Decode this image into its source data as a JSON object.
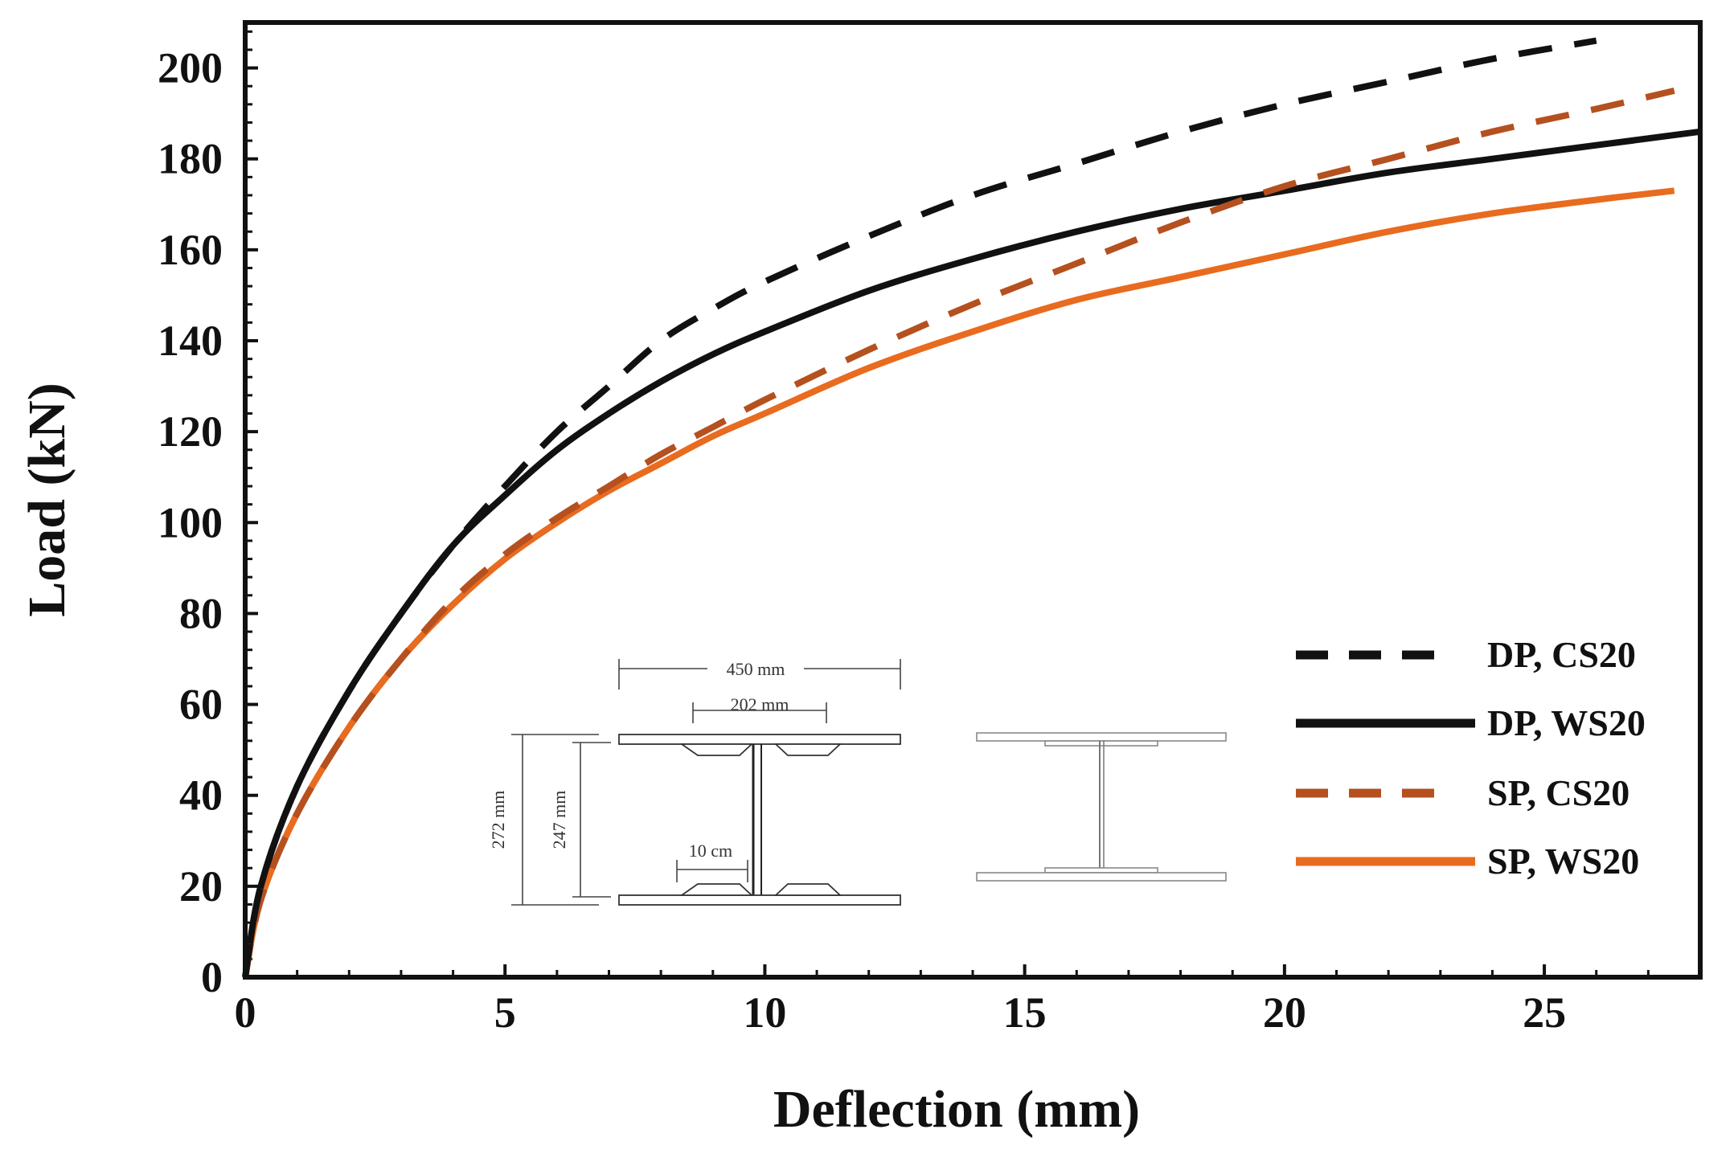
{
  "chart_data": {
    "type": "line",
    "title": "",
    "xlabel": "Deflection (mm)",
    "ylabel": "Load (kN)",
    "xlim": [
      0,
      28
    ],
    "ylim": [
      0,
      210
    ],
    "xticks": [
      0,
      5,
      10,
      15,
      20,
      25
    ],
    "yticks": [
      0,
      20,
      40,
      60,
      80,
      100,
      120,
      140,
      160,
      180,
      200
    ],
    "grid": false,
    "legend_position": "bottom-right",
    "series": [
      {
        "name": "DP, CS20",
        "color": "#111111",
        "dash": "dashed",
        "x": [
          0,
          0.3,
          1,
          2,
          3,
          4,
          5,
          6,
          7,
          8,
          9,
          10,
          12,
          14,
          16,
          18,
          20,
          22,
          24,
          26
        ],
        "y": [
          0,
          20,
          42,
          63,
          80,
          95,
          108,
          120,
          130,
          140,
          147,
          153,
          163,
          172,
          179,
          186,
          192,
          197,
          202,
          206
        ]
      },
      {
        "name": "DP, WS20",
        "color": "#111111",
        "dash": "solid",
        "x": [
          0,
          0.3,
          1,
          2,
          3,
          4,
          5,
          6,
          7,
          8,
          9,
          10,
          12,
          14,
          16,
          18,
          20,
          22,
          24,
          26,
          28
        ],
        "y": [
          0,
          20,
          42,
          63,
          80,
          95,
          106,
          116,
          124,
          131,
          137,
          142,
          151,
          158,
          164,
          169,
          173,
          177,
          180,
          183,
          186
        ]
      },
      {
        "name": "SP, CS20",
        "color": "#b5501f",
        "dash": "dashed",
        "x": [
          0,
          0.3,
          1,
          2,
          3,
          4,
          5,
          6,
          7,
          8,
          9,
          10,
          12,
          14,
          16,
          18,
          20,
          22,
          24,
          26,
          27.5
        ],
        "y": [
          0,
          17,
          36,
          55,
          70,
          83,
          93,
          101,
          108,
          115,
          121,
          127,
          138,
          148,
          157,
          166,
          174,
          180,
          186,
          191,
          195
        ]
      },
      {
        "name": "SP, WS20",
        "color": "#e86b1f",
        "dash": "solid",
        "x": [
          0,
          0.3,
          1,
          2,
          3,
          4,
          5,
          6,
          7,
          8,
          9,
          10,
          12,
          14,
          16,
          18,
          20,
          22,
          24,
          26,
          27.5
        ],
        "y": [
          0,
          17,
          36,
          55,
          70,
          82,
          92,
          100,
          107,
          113,
          119,
          124,
          134,
          142,
          149,
          154,
          159,
          164,
          168,
          171,
          173
        ]
      }
    ],
    "annotations": {
      "width_total": "450 mm",
      "width_plate": "202 mm",
      "height_total": "272 mm",
      "height_web": "247 mm",
      "spacing": "10 cm"
    }
  }
}
